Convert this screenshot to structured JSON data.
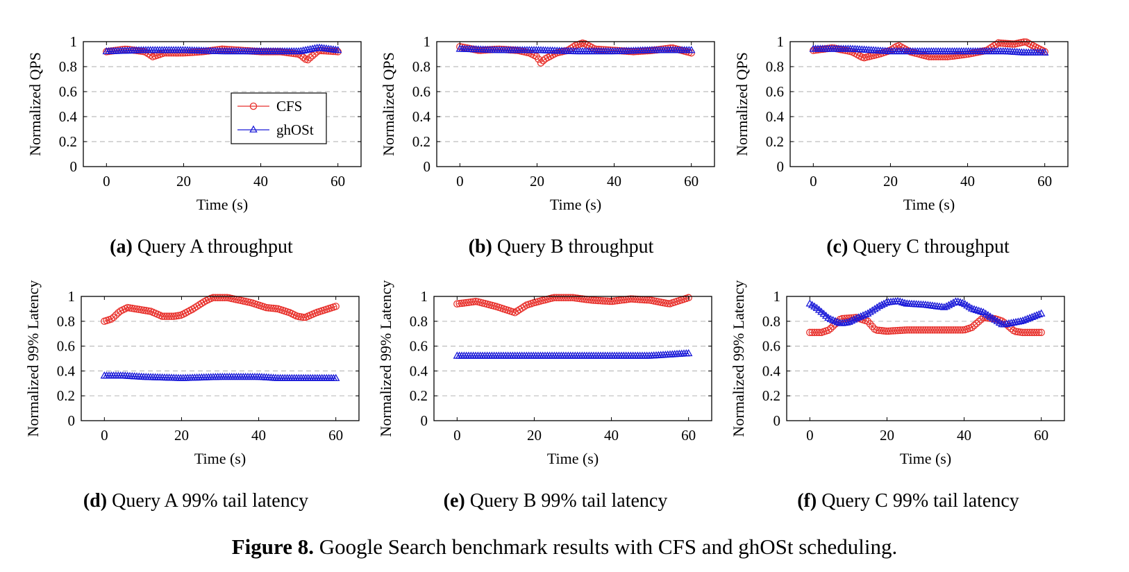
{
  "figure": {
    "label": "Figure 8.",
    "caption": "Google Search benchmark results with CFS and ghOSt scheduling."
  },
  "colors": {
    "CFS": "#e8322d",
    "ghOSt": "#1a1ad8",
    "grid": "#bdbdbd"
  },
  "legend": {
    "entries": [
      "CFS",
      "ghOSt"
    ],
    "placement": "inside panel (a), center"
  },
  "chart_data": [
    {
      "id": "a",
      "type": "line",
      "caption_label": "(a)",
      "caption_text": "Query A throughput",
      "xlabel": "Time (s)",
      "ylabel": "Normalized QPS",
      "xlim": [
        -6,
        66
      ],
      "ylim": [
        0,
        1
      ],
      "xticks": [
        0,
        20,
        40,
        60
      ],
      "yticks": [
        0,
        0.2,
        0.4,
        0.6,
        0.8,
        1
      ],
      "grid": "horizontal dashed",
      "series": [
        {
          "name": "CFS",
          "marker": "circle",
          "x": [
            0,
            5,
            10,
            12,
            15,
            20,
            25,
            30,
            35,
            40,
            45,
            50,
            52,
            55,
            60
          ],
          "y": [
            0.92,
            0.94,
            0.92,
            0.88,
            0.91,
            0.91,
            0.92,
            0.94,
            0.93,
            0.92,
            0.92,
            0.9,
            0.85,
            0.93,
            0.92
          ]
        },
        {
          "name": "ghOSt",
          "marker": "triangle",
          "x": [
            0,
            10,
            20,
            30,
            40,
            50,
            55,
            60
          ],
          "y": [
            0.92,
            0.93,
            0.93,
            0.92,
            0.92,
            0.92,
            0.95,
            0.93
          ]
        }
      ]
    },
    {
      "id": "b",
      "type": "line",
      "caption_label": "(b)",
      "caption_text": "Query B throughput",
      "xlabel": "Time (s)",
      "ylabel": "Normalized QPS",
      "xlim": [
        -6,
        66
      ],
      "ylim": [
        0,
        1
      ],
      "xticks": [
        0,
        20,
        40,
        60
      ],
      "yticks": [
        0,
        0.2,
        0.4,
        0.6,
        0.8,
        1
      ],
      "grid": "horizontal dashed",
      "series": [
        {
          "name": "CFS",
          "marker": "circle",
          "x": [
            0,
            5,
            10,
            15,
            18,
            20,
            21,
            22,
            25,
            28,
            30,
            32,
            35,
            40,
            45,
            50,
            55,
            60
          ],
          "y": [
            0.96,
            0.93,
            0.94,
            0.93,
            0.91,
            0.88,
            0.83,
            0.86,
            0.91,
            0.93,
            0.97,
            0.99,
            0.94,
            0.93,
            0.92,
            0.93,
            0.95,
            0.91
          ]
        },
        {
          "name": "ghOSt",
          "marker": "triangle",
          "x": [
            0,
            10,
            20,
            30,
            40,
            50,
            60
          ],
          "y": [
            0.94,
            0.93,
            0.93,
            0.92,
            0.92,
            0.93,
            0.93
          ]
        }
      ]
    },
    {
      "id": "c",
      "type": "line",
      "caption_label": "(c)",
      "caption_text": "Query C throughput",
      "xlabel": "Time (s)",
      "ylabel": "Normalized QPS",
      "xlim": [
        -6,
        66
      ],
      "ylim": [
        0,
        1
      ],
      "xticks": [
        0,
        20,
        40,
        60
      ],
      "yticks": [
        0,
        0.2,
        0.4,
        0.6,
        0.8,
        1
      ],
      "grid": "horizontal dashed",
      "series": [
        {
          "name": "CFS",
          "marker": "circle",
          "x": [
            0,
            5,
            10,
            13,
            17,
            20,
            22,
            25,
            30,
            35,
            40,
            45,
            48,
            52,
            55,
            58,
            60
          ],
          "y": [
            0.93,
            0.95,
            0.92,
            0.87,
            0.9,
            0.93,
            0.97,
            0.92,
            0.88,
            0.88,
            0.9,
            0.93,
            0.99,
            0.98,
            1.0,
            0.95,
            0.92
          ]
        },
        {
          "name": "ghOSt",
          "marker": "triangle",
          "x": [
            0,
            10,
            20,
            30,
            40,
            50,
            55,
            60
          ],
          "y": [
            0.94,
            0.94,
            0.92,
            0.92,
            0.92,
            0.92,
            0.91,
            0.91
          ]
        }
      ]
    },
    {
      "id": "d",
      "type": "line",
      "caption_label": "(d)",
      "caption_text": "Query A 99% tail latency",
      "xlabel": "Time (s)",
      "ylabel": "Normalized 99% Latency",
      "xlim": [
        -6,
        66
      ],
      "ylim": [
        0,
        1
      ],
      "xticks": [
        0,
        20,
        40,
        60
      ],
      "yticks": [
        0,
        0.2,
        0.4,
        0.6,
        0.8,
        1
      ],
      "grid": "horizontal dashed",
      "series": [
        {
          "name": "CFS",
          "marker": "circle",
          "x": [
            0,
            2,
            4,
            6,
            8,
            10,
            12,
            15,
            18,
            20,
            23,
            26,
            28,
            30,
            32,
            35,
            38,
            40,
            42,
            45,
            48,
            50,
            52,
            55,
            58,
            60
          ],
          "y": [
            0.8,
            0.82,
            0.88,
            0.91,
            0.9,
            0.89,
            0.88,
            0.84,
            0.84,
            0.85,
            0.9,
            0.96,
            0.99,
            0.99,
            0.99,
            0.97,
            0.95,
            0.93,
            0.91,
            0.9,
            0.87,
            0.84,
            0.83,
            0.87,
            0.9,
            0.92
          ]
        },
        {
          "name": "ghOSt",
          "marker": "triangle",
          "x": [
            0,
            5,
            10,
            20,
            30,
            40,
            45,
            50,
            60
          ],
          "y": [
            0.36,
            0.36,
            0.35,
            0.34,
            0.35,
            0.35,
            0.34,
            0.34,
            0.34
          ]
        }
      ]
    },
    {
      "id": "e",
      "type": "line",
      "caption_label": "(e)",
      "caption_text": "Query B 99% tail latency",
      "xlabel": "Time (s)",
      "ylabel": "Normalized 99% Latency",
      "xlim": [
        -6,
        66
      ],
      "ylim": [
        0,
        1
      ],
      "xticks": [
        0,
        20,
        40,
        60
      ],
      "yticks": [
        0,
        0.2,
        0.4,
        0.6,
        0.8,
        1
      ],
      "grid": "horizontal dashed",
      "series": [
        {
          "name": "CFS",
          "marker": "circle",
          "x": [
            0,
            5,
            10,
            15,
            18,
            20,
            25,
            30,
            35,
            40,
            45,
            50,
            55,
            60
          ],
          "y": [
            0.94,
            0.96,
            0.92,
            0.87,
            0.93,
            0.95,
            0.99,
            0.99,
            0.97,
            0.96,
            0.98,
            0.97,
            0.94,
            0.99
          ]
        },
        {
          "name": "ghOSt",
          "marker": "triangle",
          "x": [
            0,
            10,
            20,
            30,
            40,
            50,
            60
          ],
          "y": [
            0.52,
            0.52,
            0.52,
            0.52,
            0.52,
            0.52,
            0.54
          ]
        }
      ]
    },
    {
      "id": "f",
      "type": "line",
      "caption_label": "(f)",
      "caption_text": "Query C 99% tail latency",
      "xlabel": "Time (s)",
      "ylabel": "Normalized 99% Latency",
      "xlim": [
        -6,
        66
      ],
      "ylim": [
        0,
        1
      ],
      "xticks": [
        0,
        20,
        40,
        60
      ],
      "yticks": [
        0,
        0.2,
        0.4,
        0.6,
        0.8,
        1
      ],
      "grid": "horizontal dashed",
      "series": [
        {
          "name": "CFS",
          "marker": "circle",
          "x": [
            0,
            3,
            5,
            8,
            12,
            15,
            17,
            20,
            25,
            30,
            35,
            40,
            42,
            45,
            48,
            50,
            53,
            55,
            60
          ],
          "y": [
            0.71,
            0.71,
            0.73,
            0.82,
            0.83,
            0.8,
            0.73,
            0.72,
            0.73,
            0.73,
            0.73,
            0.73,
            0.75,
            0.83,
            0.82,
            0.8,
            0.72,
            0.71,
            0.71
          ]
        },
        {
          "name": "ghOSt",
          "marker": "triangle",
          "x": [
            0,
            2,
            5,
            8,
            10,
            12,
            15,
            18,
            20,
            23,
            25,
            30,
            35,
            38,
            40,
            42,
            45,
            48,
            50,
            55,
            60
          ],
          "y": [
            0.94,
            0.9,
            0.82,
            0.78,
            0.79,
            0.82,
            0.86,
            0.92,
            0.95,
            0.96,
            0.94,
            0.93,
            0.91,
            0.96,
            0.94,
            0.9,
            0.87,
            0.81,
            0.77,
            0.8,
            0.86
          ]
        }
      ]
    }
  ]
}
